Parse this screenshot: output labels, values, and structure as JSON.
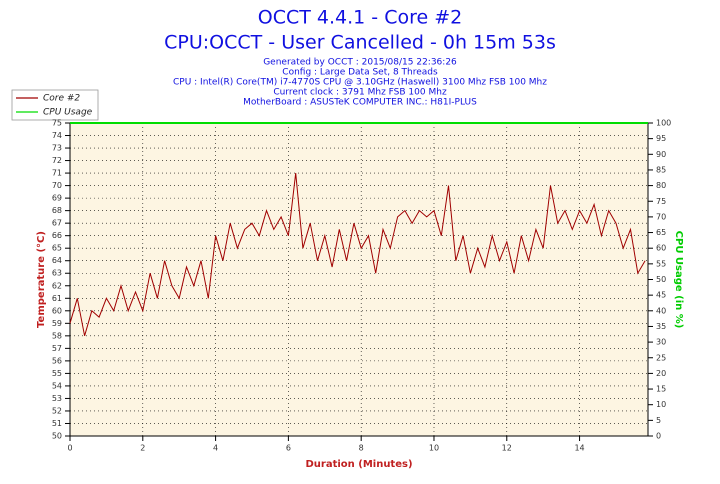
{
  "chart_data": {
    "type": "line",
    "title": "OCCT 4.4.1 - Core #2",
    "subtitle": "CPU:OCCT - User Cancelled - 0h 15m 53s",
    "info": [
      "Generated by OCCT : 2015/08/15 22:36:26",
      "Config : Large Data Set, 8 Threads",
      "CPU : Intel(R) Core(TM) i7-4770S CPU @ 3.10GHz (Haswell) 3100 Mhz FSB 100 Mhz",
      "Current clock : 3791 Mhz FSB 100 Mhz",
      "MotherBoard : ASUSTeK COMPUTER INC.: H81I-PLUS"
    ],
    "xlabel": "Duration (Minutes)",
    "ylabel": "Temperature (°C)",
    "y2label": "CPU Usage (in %)",
    "xlim": [
      0,
      15.88
    ],
    "xticks": [
      0,
      2,
      4,
      6,
      8,
      10,
      12,
      14
    ],
    "ylim": [
      50,
      75
    ],
    "yticks": [
      50,
      51,
      52,
      53,
      54,
      55,
      56,
      57,
      58,
      59,
      60,
      61,
      62,
      63,
      64,
      65,
      66,
      67,
      68,
      69,
      70,
      71,
      72,
      73,
      74,
      75
    ],
    "y2lim": [
      0,
      100
    ],
    "y2ticks": [
      0,
      5,
      10,
      15,
      20,
      25,
      30,
      35,
      40,
      45,
      50,
      55,
      60,
      65,
      70,
      75,
      80,
      85,
      90,
      95,
      100
    ],
    "grid": true,
    "series": [
      {
        "name": "Core #2",
        "color": "#a00000",
        "x": [
          0,
          0.2,
          0.4,
          0.6,
          0.8,
          1,
          1.2,
          1.4,
          1.6,
          1.8,
          2,
          2.2,
          2.4,
          2.6,
          2.8,
          3,
          3.2,
          3.4,
          3.6,
          3.8,
          4,
          4.2,
          4.4,
          4.6,
          4.8,
          5,
          5.2,
          5.4,
          5.6,
          5.8,
          6,
          6.2,
          6.4,
          6.6,
          6.8,
          7,
          7.2,
          7.4,
          7.6,
          7.8,
          8,
          8.2,
          8.4,
          8.6,
          8.8,
          9,
          9.2,
          9.4,
          9.6,
          9.8,
          10,
          10.2,
          10.4,
          10.6,
          10.8,
          11,
          11.2,
          11.4,
          11.6,
          11.8,
          12,
          12.2,
          12.4,
          12.6,
          12.8,
          13,
          13.2,
          13.4,
          13.6,
          13.8,
          14,
          14.2,
          14.4,
          14.6,
          14.8,
          15,
          15.2,
          15.4,
          15.6,
          15.8
        ],
        "values": [
          59,
          61,
          58,
          60,
          59.5,
          61,
          60,
          62,
          60,
          61.5,
          60,
          63,
          61,
          64,
          62,
          61,
          63.5,
          62,
          64,
          61,
          66,
          64,
          67,
          65,
          66.5,
          67,
          66,
          68,
          66.5,
          67.5,
          66,
          71,
          65,
          67,
          64,
          66,
          63.5,
          66.5,
          64,
          67,
          65,
          66,
          63,
          66.5,
          65,
          67.5,
          68,
          67,
          68,
          67.5,
          68,
          66,
          70,
          64,
          66,
          63,
          65,
          63.5,
          66,
          64,
          65.5,
          63,
          66,
          64,
          66.5,
          65,
          70,
          67,
          68,
          66.5,
          68,
          67,
          68.5,
          66,
          68,
          67,
          65,
          66.5,
          63,
          64
        ]
      },
      {
        "name": "CPU Usage",
        "color": "#00dd00",
        "axis": "y2",
        "x": [
          0,
          15.88
        ],
        "values": [
          100,
          100
        ]
      }
    ]
  }
}
